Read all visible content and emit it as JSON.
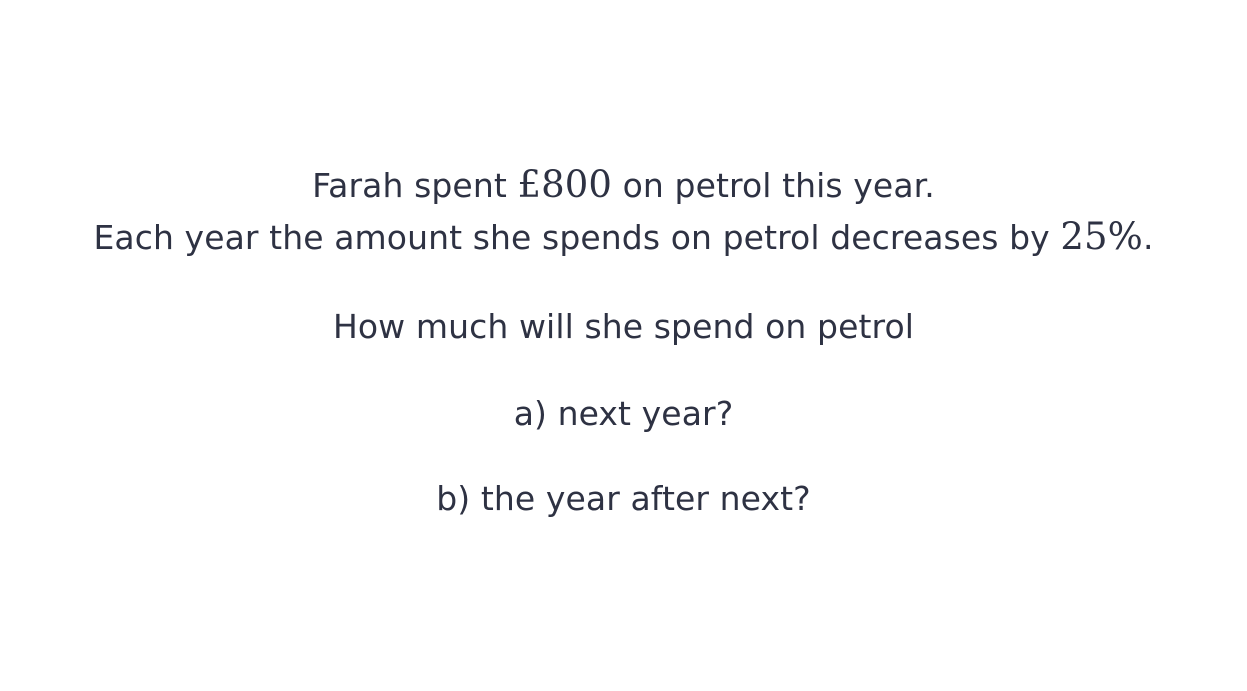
{
  "question": {
    "line1": {
      "before": "Farah spent ",
      "math": "£800",
      "after": " on petrol this year."
    },
    "line2": {
      "before": "Each year the amount she spends on petrol decreases by ",
      "math": "25%",
      "after": "."
    },
    "line3": "How much will she spend on petrol",
    "part_a": "a) next year?",
    "part_b": "b) the year after next?"
  }
}
